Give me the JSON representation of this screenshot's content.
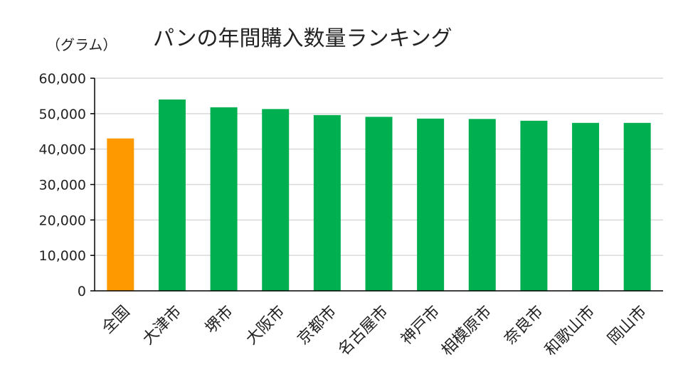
{
  "chart_data": {
    "type": "bar",
    "title": "パンの年間購入数量ランキング",
    "unit_label": "（グラム）",
    "categories": [
      "全国",
      "大津市",
      "堺市",
      "大阪市",
      "京都市",
      "名古屋市",
      "神戸市",
      "相模原市",
      "奈良市",
      "和歌山市",
      "岡山市"
    ],
    "values": [
      43000,
      54000,
      51800,
      51300,
      49600,
      49100,
      48600,
      48500,
      48000,
      47400,
      47400
    ],
    "ylim": [
      0,
      60000
    ],
    "yticks": [
      0,
      10000,
      20000,
      30000,
      40000,
      50000,
      60000
    ],
    "ytick_labels": [
      "0",
      "10,000",
      "20,000",
      "30,000",
      "40,000",
      "50,000",
      "60,000"
    ],
    "grid": true,
    "colors": {
      "highlight": "#FF9900",
      "bar": "#00B050",
      "grid": "#D9D9D9",
      "axis": "#000000"
    }
  }
}
